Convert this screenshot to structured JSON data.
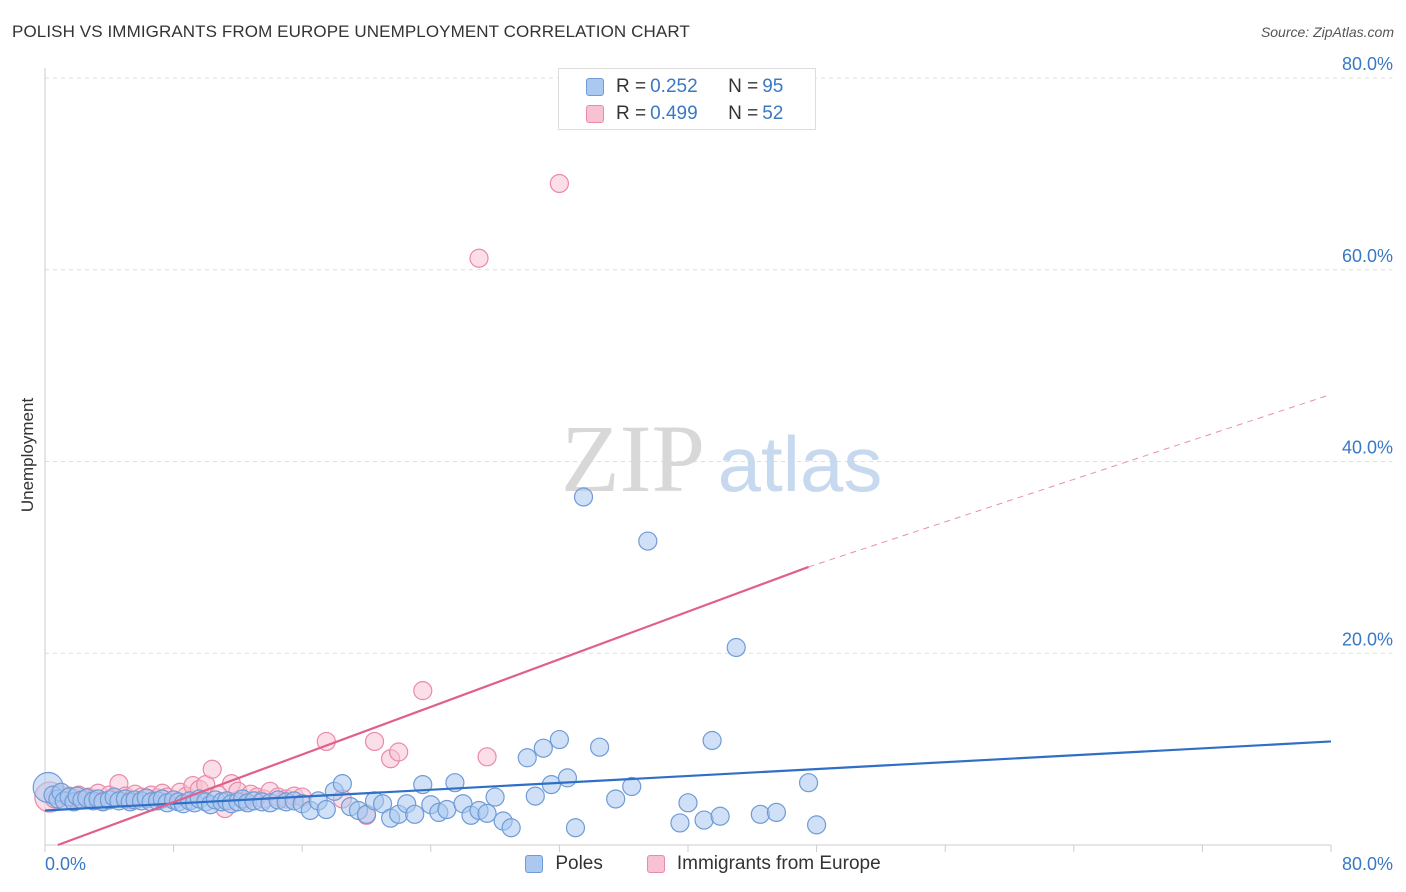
{
  "header": {
    "title": "POLISH VS IMMIGRANTS FROM EUROPE UNEMPLOYMENT CORRELATION CHART",
    "source": "Source: ZipAtlas.com"
  },
  "watermark": {
    "zip": "ZIP",
    "atlas": "atlas"
  },
  "legend": {
    "poles": {
      "r_label": "R = ",
      "r_value": "0.252",
      "n_label": "N = ",
      "n_value": "95"
    },
    "immigrants": {
      "r_label": "R = ",
      "r_value": "0.499",
      "n_label": "N = ",
      "n_value": "52"
    }
  },
  "colors": {
    "poles_fill": "#aac8f0",
    "poles_stroke": "#6f9bd6",
    "poles_line": "#2f6fc6",
    "imm_fill": "#f7c3d3",
    "imm_stroke": "#ea8aa8",
    "imm_line": "#e0608c",
    "axis_text": "#3a78c4",
    "grid": "#dddddd"
  },
  "chart_data": {
    "type": "scatter",
    "title": "POLISH VS IMMIGRANTS FROM EUROPE UNEMPLOYMENT CORRELATION CHART",
    "xlabel": "",
    "ylabel": "Unemployment",
    "xlim": [
      0,
      80
    ],
    "ylim": [
      0,
      80
    ],
    "x_tick_labels": [
      "0.0%",
      "80.0%"
    ],
    "y_ticks": [
      20,
      40,
      60,
      80
    ],
    "y_tick_labels": [
      "20.0%",
      "40.0%",
      "60.0%",
      "80.0%"
    ],
    "grid": true,
    "series": [
      {
        "name": "Poles",
        "r": 0.252,
        "n": 95,
        "trend": {
          "x0": 0,
          "y0": 3.6,
          "x1": 80,
          "y1": 10.8
        },
        "points": [
          [
            0.2,
            6.0
          ],
          [
            0.5,
            5.2
          ],
          [
            0.8,
            4.8
          ],
          [
            1.0,
            5.5
          ],
          [
            1.2,
            4.6
          ],
          [
            1.5,
            5.0
          ],
          [
            1.8,
            4.5
          ],
          [
            2.0,
            5.1
          ],
          [
            2.3,
            4.7
          ],
          [
            2.6,
            4.9
          ],
          [
            3.0,
            4.6
          ],
          [
            3.3,
            4.8
          ],
          [
            3.6,
            4.5
          ],
          [
            4.0,
            4.7
          ],
          [
            4.3,
            5.0
          ],
          [
            4.6,
            4.6
          ],
          [
            5.0,
            4.8
          ],
          [
            5.3,
            4.5
          ],
          [
            5.6,
            4.7
          ],
          [
            6.0,
            4.6
          ],
          [
            6.3,
            4.9
          ],
          [
            6.6,
            4.5
          ],
          [
            7.0,
            4.6
          ],
          [
            7.3,
            4.8
          ],
          [
            7.6,
            4.4
          ],
          [
            8.0,
            4.7
          ],
          [
            8.3,
            4.5
          ],
          [
            8.6,
            4.3
          ],
          [
            9.0,
            4.6
          ],
          [
            9.3,
            4.4
          ],
          [
            9.6,
            4.8
          ],
          [
            10.0,
            4.5
          ],
          [
            10.3,
            4.2
          ],
          [
            10.6,
            4.7
          ],
          [
            11.0,
            4.5
          ],
          [
            11.3,
            4.6
          ],
          [
            11.6,
            4.3
          ],
          [
            12.0,
            4.5
          ],
          [
            12.3,
            4.8
          ],
          [
            12.6,
            4.4
          ],
          [
            13.0,
            4.6
          ],
          [
            13.5,
            4.5
          ],
          [
            14.0,
            4.4
          ],
          [
            14.5,
            4.7
          ],
          [
            15.0,
            4.5
          ],
          [
            15.5,
            4.6
          ],
          [
            16.0,
            4.3
          ],
          [
            16.5,
            3.6
          ],
          [
            17.0,
            4.6
          ],
          [
            17.5,
            3.7
          ],
          [
            18.0,
            5.6
          ],
          [
            18.5,
            6.4
          ],
          [
            19.0,
            4.0
          ],
          [
            19.5,
            3.6
          ],
          [
            20.0,
            3.2
          ],
          [
            20.5,
            4.6
          ],
          [
            21.0,
            4.3
          ],
          [
            21.5,
            2.8
          ],
          [
            22.0,
            3.2
          ],
          [
            22.5,
            4.3
          ],
          [
            23.0,
            3.2
          ],
          [
            23.5,
            6.3
          ],
          [
            24.0,
            4.2
          ],
          [
            24.5,
            3.4
          ],
          [
            25.0,
            3.7
          ],
          [
            25.5,
            6.5
          ],
          [
            26.0,
            4.3
          ],
          [
            26.5,
            3.1
          ],
          [
            27.0,
            3.6
          ],
          [
            27.5,
            3.3
          ],
          [
            28.0,
            5.0
          ],
          [
            28.5,
            2.5
          ],
          [
            29.0,
            1.8
          ],
          [
            30.0,
            9.1
          ],
          [
            30.5,
            5.1
          ],
          [
            31.0,
            10.1
          ],
          [
            31.5,
            6.3
          ],
          [
            32.0,
            11.0
          ],
          [
            32.5,
            7.0
          ],
          [
            33.0,
            1.8
          ],
          [
            33.5,
            36.3
          ],
          [
            34.5,
            10.2
          ],
          [
            35.5,
            4.8
          ],
          [
            36.5,
            6.1
          ],
          [
            37.5,
            31.7
          ],
          [
            39.5,
            2.3
          ],
          [
            40.0,
            4.4
          ],
          [
            41.0,
            2.6
          ],
          [
            41.5,
            10.9
          ],
          [
            42.0,
            3.0
          ],
          [
            43.0,
            20.6
          ],
          [
            44.5,
            3.2
          ],
          [
            45.5,
            3.4
          ],
          [
            47.5,
            6.5
          ],
          [
            48.0,
            2.1
          ]
        ]
      },
      {
        "name": "Immigrants from Europe",
        "r": 0.499,
        "n": 52,
        "trend": {
          "x0": 0.8,
          "y0": 0.0,
          "x1": 47.5,
          "y1": 29.0,
          "dash_x1": 80,
          "dash_y1": 47.0
        },
        "points": [
          [
            0.3,
            5.0
          ],
          [
            0.6,
            4.8
          ],
          [
            0.9,
            5.3
          ],
          [
            1.2,
            4.6
          ],
          [
            1.5,
            5.1
          ],
          [
            1.8,
            4.9
          ],
          [
            2.1,
            5.2
          ],
          [
            2.4,
            4.7
          ],
          [
            2.7,
            5.0
          ],
          [
            3.0,
            4.8
          ],
          [
            3.3,
            5.4
          ],
          [
            3.6,
            4.6
          ],
          [
            4.0,
            5.2
          ],
          [
            4.3,
            4.9
          ],
          [
            4.6,
            6.4
          ],
          [
            5.0,
            5.1
          ],
          [
            5.3,
            4.7
          ],
          [
            5.6,
            5.3
          ],
          [
            6.0,
            5.0
          ],
          [
            6.3,
            4.8
          ],
          [
            6.6,
            5.2
          ],
          [
            7.0,
            4.9
          ],
          [
            7.3,
            5.4
          ],
          [
            7.6,
            5.0
          ],
          [
            8.0,
            4.7
          ],
          [
            8.4,
            5.5
          ],
          [
            8.8,
            5.1
          ],
          [
            9.2,
            6.2
          ],
          [
            9.6,
            5.8
          ],
          [
            10.0,
            6.3
          ],
          [
            10.4,
            7.9
          ],
          [
            10.8,
            5.2
          ],
          [
            11.2,
            3.8
          ],
          [
            11.6,
            6.4
          ],
          [
            12.0,
            5.6
          ],
          [
            12.4,
            4.6
          ],
          [
            12.8,
            5.3
          ],
          [
            13.2,
            5.0
          ],
          [
            13.6,
            4.8
          ],
          [
            14.0,
            5.6
          ],
          [
            14.5,
            5.0
          ],
          [
            15.0,
            4.8
          ],
          [
            15.5,
            5.1
          ],
          [
            16.0,
            5.0
          ],
          [
            17.5,
            10.8
          ],
          [
            18.5,
            4.8
          ],
          [
            20.0,
            3.1
          ],
          [
            20.5,
            10.8
          ],
          [
            21.5,
            9.0
          ],
          [
            22.0,
            9.7
          ],
          [
            23.5,
            16.1
          ],
          [
            27.5,
            9.2
          ]
        ],
        "outliers": [
          [
            32.0,
            69.0
          ],
          [
            27.0,
            61.2
          ]
        ]
      }
    ]
  }
}
